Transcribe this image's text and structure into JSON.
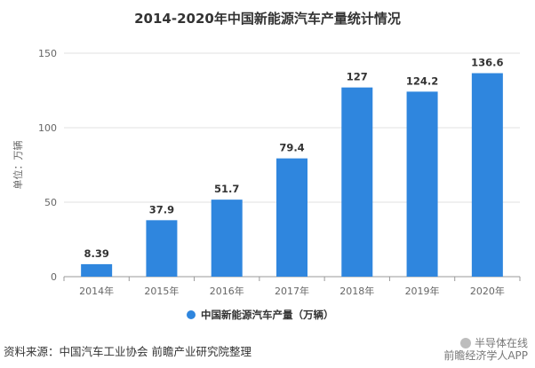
{
  "chart_data": {
    "type": "bar",
    "title": "2014-2020年中国新能源汽车产量统计情况",
    "categories": [
      "2014年",
      "2015年",
      "2016年",
      "2017年",
      "2018年",
      "2019年",
      "2020年"
    ],
    "series": [
      {
        "name": "中国新能源汽车产量（万辆）",
        "values": [
          8.39,
          37.9,
          51.7,
          79.4,
          127,
          124.2,
          136.6
        ]
      }
    ],
    "data_labels": [
      "8.39",
      "37.9",
      "51.7",
      "79.4",
      "127",
      "124.2",
      "136.6"
    ],
    "ylabel": "单位：万辆",
    "xlabel": "",
    "ylim": [
      0,
      150
    ],
    "yticks": [
      0,
      50,
      100,
      150
    ],
    "grid": true,
    "legend_position": "bottom",
    "colors": {
      "bar": "#2f86de",
      "grid": "#e0e0e0",
      "axis": "#999999"
    }
  },
  "footer": {
    "source": "资料来源：中国汽车工业协会 前瞻产业研究院整理"
  },
  "brand": {
    "line1": "半导体在线",
    "line2": "前瞻经济学人APP"
  }
}
